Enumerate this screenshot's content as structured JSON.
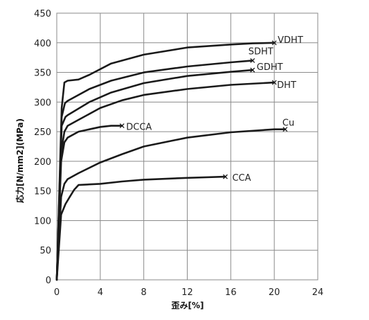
{
  "chart_data": {
    "type": "line",
    "title": "",
    "xlabel": "歪み[%]",
    "ylabel": "応力[N/mm2](MPa)",
    "xlim": [
      0,
      24
    ],
    "ylim": [
      0,
      450
    ],
    "xticks": [
      0,
      4,
      8,
      12,
      16,
      20,
      24
    ],
    "yticks": [
      0,
      50,
      100,
      150,
      200,
      250,
      300,
      350,
      400,
      450
    ],
    "grid": true,
    "legend": "none",
    "series": [
      {
        "name": "VDHT",
        "x": [
          0,
          0.45,
          0.7,
          1.0,
          2.0,
          3.0,
          5.0,
          8.0,
          12.0,
          16.0,
          18.0,
          20.0
        ],
        "y": [
          0,
          290,
          333,
          336,
          338,
          346,
          365,
          380,
          392,
          397,
          399,
          400
        ]
      },
      {
        "name": "SDHT",
        "x": [
          0,
          0.45,
          0.75,
          1.0,
          3.0,
          5.0,
          8.0,
          12.0,
          16.0,
          18.0
        ],
        "y": [
          0,
          275,
          298,
          302,
          322,
          336,
          350,
          360,
          367,
          370
        ]
      },
      {
        "name": "GDHT",
        "x": [
          0,
          0.45,
          0.8,
          1.0,
          3.0,
          5.0,
          8.0,
          12.0,
          16.0,
          18.0
        ],
        "y": [
          0,
          260,
          275,
          278,
          300,
          316,
          332,
          344,
          351,
          354
        ]
      },
      {
        "name": "DHT",
        "x": [
          0,
          0.4,
          0.7,
          1.0,
          2.0,
          4.0,
          6.0,
          8.0,
          12.0,
          16.0,
          20.0
        ],
        "y": [
          0,
          215,
          250,
          260,
          270,
          290,
          303,
          312,
          322,
          329,
          333
        ]
      },
      {
        "name": "DCCA",
        "x": [
          0,
          0.4,
          0.7,
          1.0,
          2.0,
          3.0,
          4.0,
          5.0,
          6.0
        ],
        "y": [
          0,
          200,
          232,
          240,
          250,
          254,
          258,
          260,
          260
        ]
      },
      {
        "name": "Cu",
        "x": [
          0,
          0.4,
          0.7,
          1.0,
          2.0,
          4.0,
          6.0,
          8.0,
          12.0,
          16.0,
          20.0,
          21.0
        ],
        "y": [
          0,
          140,
          162,
          170,
          180,
          198,
          212,
          225,
          240,
          249,
          254,
          254
        ]
      },
      {
        "name": "CCA",
        "x": [
          0,
          0.4,
          0.8,
          1.2,
          1.6,
          2.0,
          4.0,
          6.0,
          8.0,
          12.0,
          15.5
        ],
        "y": [
          0,
          110,
          128,
          140,
          152,
          160,
          162,
          166,
          169,
          172,
          174
        ]
      }
    ]
  }
}
